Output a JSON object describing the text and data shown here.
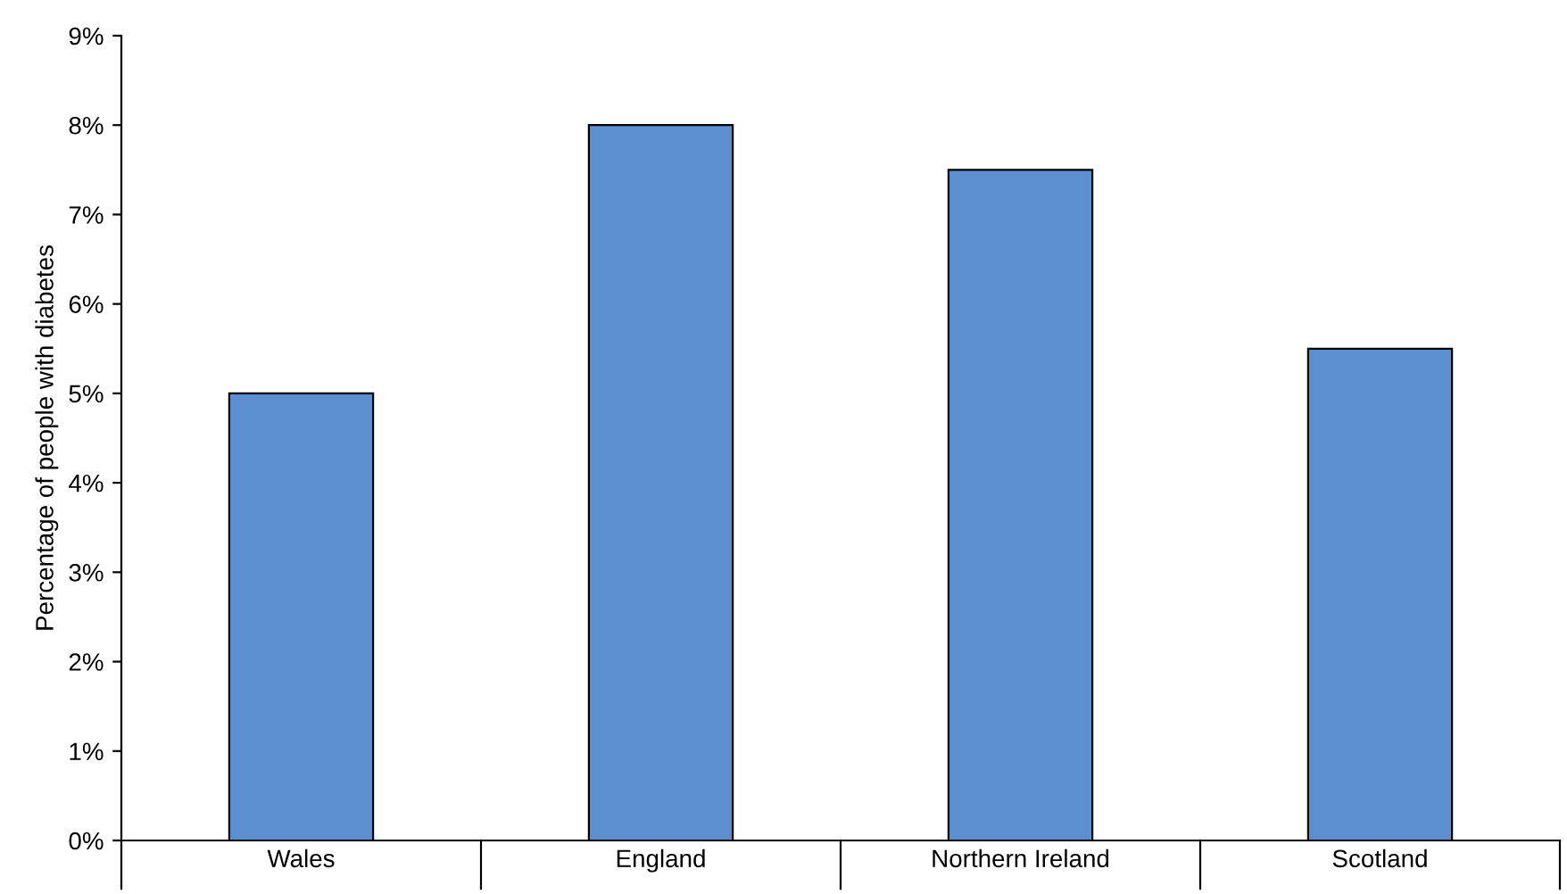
{
  "chart_data": {
    "type": "bar",
    "ylabel": "Percentage of people with diabetes",
    "categories": [
      "Wales",
      "England",
      "Northern Ireland",
      "Scotland"
    ],
    "values": [
      5.0,
      8.0,
      7.5,
      5.5
    ],
    "color": "#5b8fd0",
    "ylim": [
      0,
      9
    ],
    "yticks": [
      {
        "value": 0,
        "label": "0%"
      },
      {
        "value": 1,
        "label": "1%"
      },
      {
        "value": 2,
        "label": "2%"
      },
      {
        "value": 3,
        "label": "3%"
      },
      {
        "value": 4,
        "label": "4%"
      },
      {
        "value": 5,
        "label": "5%"
      },
      {
        "value": 6,
        "label": "6%"
      },
      {
        "value": 7,
        "label": "7%"
      },
      {
        "value": 8,
        "label": "8%"
      },
      {
        "value": 9,
        "label": "9%"
      }
    ],
    "grid": false
  }
}
